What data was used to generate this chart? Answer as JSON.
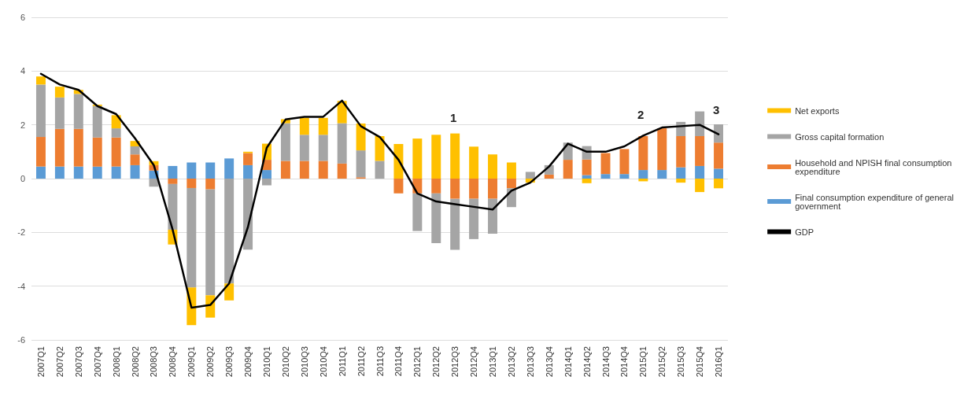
{
  "chart_data": {
    "type": "bar",
    "stacked": true,
    "categories": [
      "2007Q1",
      "2007Q2",
      "2007Q3",
      "2007Q4",
      "2008Q1",
      "2008Q2",
      "2008Q3",
      "2008Q4",
      "2009Q1",
      "2009Q2",
      "2009Q3",
      "2009Q4",
      "2010Q1",
      "2010Q2",
      "2010Q3",
      "2010Q4",
      "2011Q1",
      "2011Q2",
      "2011Q3",
      "2011Q4",
      "2012Q1",
      "2012Q2",
      "2012Q3",
      "2012Q4",
      "2013Q1",
      "2013Q2",
      "2013Q3",
      "2013Q4",
      "2014Q1",
      "2014Q2",
      "2014Q3",
      "2014Q4",
      "2015Q1",
      "2015Q2",
      "2015Q3",
      "2015Q4",
      "2016Q1"
    ],
    "series": [
      {
        "name": "Final consumption expenditure of general government",
        "color": "#5b9bd5",
        "values": [
          0.45,
          0.45,
          0.45,
          0.45,
          0.45,
          0.5,
          0.3,
          0.47,
          0.6,
          0.6,
          0.75,
          0.5,
          0.32,
          0,
          0,
          0,
          0,
          0,
          0,
          0,
          0,
          0,
          0,
          0,
          0,
          0,
          0,
          0,
          0,
          0.13,
          0.17,
          0.17,
          0.32,
          0.32,
          0.42,
          0.47,
          0.37
        ]
      },
      {
        "name": "Household and NPISH final consumption expenditure",
        "color": "#ed7d31",
        "values": [
          1.1,
          1.4,
          1.4,
          1.08,
          1.08,
          0.4,
          0.2,
          -0.2,
          -0.35,
          -0.4,
          0,
          0.45,
          0.38,
          0.66,
          0.66,
          0.66,
          0.56,
          0.05,
          0,
          -0.55,
          -0.55,
          -0.55,
          -0.75,
          -0.75,
          -0.75,
          -0.36,
          0,
          0.15,
          0.7,
          0.58,
          0.78,
          0.93,
          1.26,
          1.55,
          1.16,
          1.11,
          0.97
        ]
      },
      {
        "name": "Gross capital formation",
        "color": "#a5a5a5",
        "values": [
          1.95,
          1.17,
          1.3,
          1.17,
          0.34,
          0.3,
          -0.3,
          -1.7,
          -3.7,
          -3.94,
          -3.9,
          -2.64,
          -0.25,
          1.4,
          0.97,
          0.97,
          1.5,
          1.0,
          0.66,
          0,
          -1.4,
          -1.85,
          -1.9,
          -1.5,
          -1.3,
          -0.7,
          0.25,
          0.35,
          0.64,
          0.5,
          0,
          null,
          0,
          0,
          0.53,
          0.92,
          0.68
        ]
      },
      {
        "name": "Net exports",
        "color": "#ffc000",
        "values": [
          0.3,
          0.4,
          0.15,
          0.05,
          0.49,
          0.2,
          0.15,
          -0.55,
          -1.4,
          -0.83,
          -0.63,
          0.05,
          0.6,
          0.15,
          0.63,
          0.63,
          0.83,
          1.0,
          0.92,
          1.29,
          1.49,
          1.63,
          1.68,
          1.19,
          0.9,
          0.6,
          -0.15,
          0,
          0,
          -0.17,
          0,
          0,
          -0.1,
          0,
          -0.15,
          -0.5,
          -0.36
        ]
      },
      {
        "name": "GDP",
        "type": "line",
        "color": "#000000",
        "values": [
          3.9,
          3.5,
          3.3,
          2.7,
          2.4,
          1.5,
          0.5,
          -1.9,
          -4.8,
          -4.7,
          -3.9,
          -1.8,
          1.15,
          2.2,
          2.3,
          2.3,
          2.9,
          1.95,
          1.55,
          0.7,
          -0.55,
          -0.85,
          -0.95,
          -1.05,
          -1.15,
          -0.45,
          -0.15,
          0.45,
          1.3,
          1.0,
          1.0,
          1.2,
          1.6,
          1.9,
          1.95,
          2.0,
          1.65
        ]
      }
    ],
    "ylim": [
      -6,
      6
    ],
    "yticks": [
      -6,
      -4,
      -2,
      0,
      2,
      4,
      6
    ],
    "grid": "y",
    "legend": "right",
    "marker": "none",
    "line_style": "solid",
    "annotations": [
      "1",
      "2",
      "3"
    ]
  }
}
